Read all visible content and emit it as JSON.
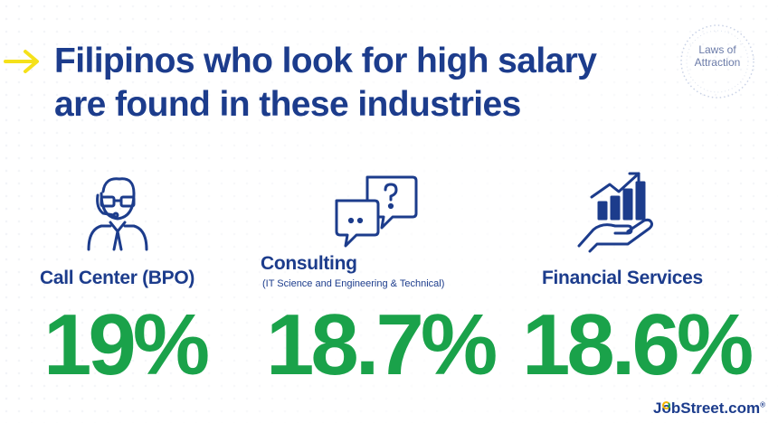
{
  "headline": {
    "line1": "Filipinos who look for high salary",
    "line2": "are found in these industries"
  },
  "badge": {
    "line1": "Laws of",
    "line2": "Attraction"
  },
  "industries": [
    {
      "icon": "call-center-agent-icon",
      "label": "Call Center (BPO)",
      "sublabel": "",
      "value": "19%"
    },
    {
      "icon": "chat-bubbles-icon",
      "label": "Consulting",
      "sublabel": "(IT Science and Engineering & Technical)",
      "value": "18.7%"
    },
    {
      "icon": "hand-growth-chart-icon",
      "label": "Financial Services",
      "sublabel": "",
      "value": "18.6%"
    }
  ],
  "logo": {
    "brand_pre": "J",
    "brand_o": "o",
    "brand_post": "bStreet.com",
    "mark": "®"
  },
  "colors": {
    "navy": "#1c3c8c",
    "green": "#1aa24a",
    "yellow": "#f5e11a"
  }
}
